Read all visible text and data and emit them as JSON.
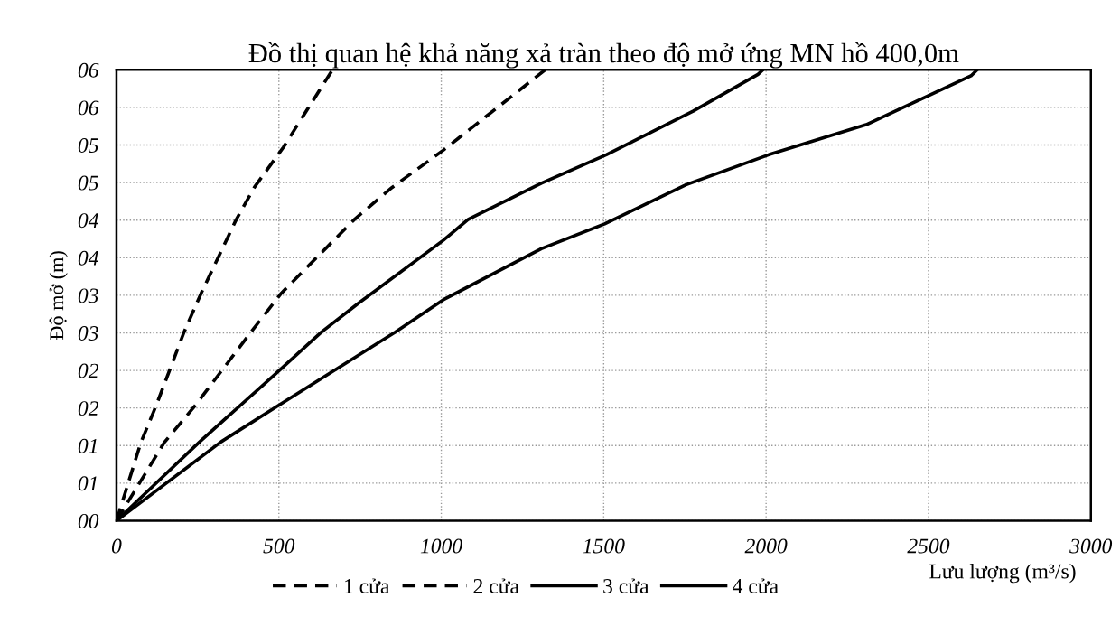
{
  "chart_data": {
    "type": "line",
    "title": "Đồ thị quan hệ khả năng xả tràn theo độ mở ứng MN hồ 400,0m",
    "xlabel": "Lưu lượng (m³/s)",
    "ylabel": "Độ mở (m)",
    "xlim": [
      0,
      3000
    ],
    "xticks": [
      0,
      500,
      1000,
      1500,
      2000,
      2500,
      3000
    ],
    "ylim": [
      0,
      6
    ],
    "yticks": [
      {
        "value": 0,
        "label": "00"
      },
      {
        "value": 0.5,
        "label": "01"
      },
      {
        "value": 1,
        "label": "01"
      },
      {
        "value": 1.5,
        "label": "02"
      },
      {
        "value": 2,
        "label": "02"
      },
      {
        "value": 2.5,
        "label": "03"
      },
      {
        "value": 3,
        "label": "03"
      },
      {
        "value": 3.5,
        "label": "04"
      },
      {
        "value": 4,
        "label": "04"
      },
      {
        "value": 4.5,
        "label": "05"
      },
      {
        "value": 5,
        "label": "05"
      },
      {
        "value": 5.5,
        "label": "06"
      },
      {
        "value": 6,
        "label": "06"
      }
    ],
    "grid": true,
    "legend": "bottom",
    "marker": "none",
    "series": [
      {
        "name": "1 cửa",
        "color": "#000000",
        "line_style": "dashed",
        "x": [
          0,
          75,
          122,
          208,
          261,
          369,
          425,
          514,
          665
        ],
        "values": [
          0,
          1.04,
          1.53,
          2.51,
          3.03,
          4.01,
          4.44,
          4.97,
          6.0
        ]
      },
      {
        "name": "2 cửa",
        "color": "#000000",
        "line_style": "dashed",
        "x": [
          0,
          147,
          242,
          414,
          508,
          733,
          847,
          1006,
          1320
        ],
        "values": [
          0,
          1.04,
          1.53,
          2.51,
          3.03,
          4.01,
          4.43,
          4.93,
          6.0
        ]
      },
      {
        "name": "3 cửa",
        "color": "#000000",
        "line_style": "solid",
        "x": [
          0,
          256,
          486,
          631,
          744,
          1006,
          1083,
          1308,
          1508,
          1775,
          1975,
          1990
        ],
        "values": [
          0,
          1.05,
          1.94,
          2.51,
          2.89,
          3.73,
          4.01,
          4.49,
          4.87,
          5.45,
          5.94,
          6.0
        ]
      },
      {
        "name": "4 cửa",
        "color": "#000000",
        "line_style": "solid",
        "x": [
          0,
          322,
          497,
          858,
          1006,
          1308,
          1503,
          1753,
          2008,
          2308,
          2631,
          2650
        ],
        "values": [
          0,
          1.05,
          1.53,
          2.51,
          2.94,
          3.62,
          3.95,
          4.47,
          4.87,
          5.27,
          5.92,
          6.0
        ]
      }
    ]
  }
}
